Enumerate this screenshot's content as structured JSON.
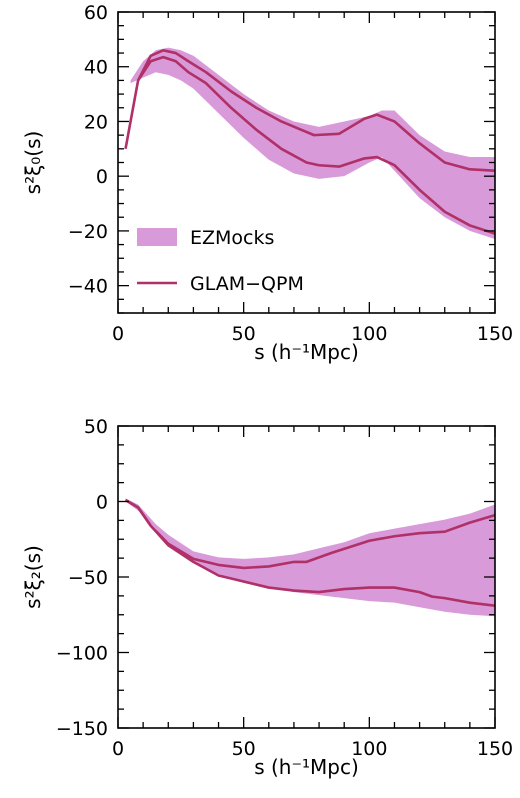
{
  "colors": {
    "band": "#d99ad9",
    "line": "#b03068",
    "axis": "#000000",
    "background": "#ffffff"
  },
  "chart_data": [
    {
      "type": "area",
      "id": "monopole",
      "xlabel": "s (h⁻¹Mpc)",
      "ylabel": "s²ξ₀(s)",
      "xlim": [
        0,
        150
      ],
      "ylim": [
        -50,
        60
      ],
      "xticks": [
        0,
        50,
        100,
        150
      ],
      "yticks": [
        -40,
        -20,
        0,
        20,
        40,
        60
      ],
      "legend": {
        "position": "lower-left",
        "entries": [
          "EZMocks",
          "GLAM−QPM"
        ]
      },
      "series": [
        {
          "name": "EZMocks",
          "kind": "band",
          "x": [
            5,
            10,
            15,
            20,
            25,
            30,
            40,
            50,
            60,
            70,
            80,
            90,
            100,
            105,
            110,
            120,
            130,
            140,
            150
          ],
          "lower": [
            34,
            36,
            38,
            37,
            35,
            32,
            23,
            14,
            6,
            1,
            -1,
            0,
            5,
            7,
            2,
            -8,
            -15,
            -20,
            -23
          ],
          "upper": [
            35,
            42,
            46,
            47,
            46,
            44,
            37,
            30,
            24,
            20,
            18,
            20,
            22,
            24,
            24,
            15,
            9,
            7,
            7
          ]
        },
        {
          "name": "GLAM−QPM",
          "kind": "line",
          "x": [
            3,
            8,
            13,
            18,
            23,
            28,
            35,
            45,
            55,
            65,
            78,
            88,
            98,
            103,
            110,
            120,
            130,
            140,
            150
          ],
          "y": [
            10,
            35,
            44,
            46,
            45,
            42,
            38,
            31,
            25,
            20,
            15,
            15.5,
            21,
            22.5,
            20,
            12,
            5,
            2.5,
            2
          ]
        },
        {
          "name": "GLAM−QPM",
          "kind": "line",
          "x": [
            8,
            13,
            18,
            23,
            28,
            35,
            45,
            55,
            65,
            75,
            80,
            88,
            98,
            103,
            110,
            120,
            130,
            140,
            150
          ],
          "y": [
            35,
            42,
            43.5,
            42,
            38,
            34,
            25,
            17,
            10,
            5,
            4,
            3.5,
            6.5,
            7,
            4,
            -5,
            -13,
            -18,
            -21
          ]
        }
      ]
    },
    {
      "type": "area",
      "id": "quadrupole",
      "xlabel": "s (h⁻¹Mpc)",
      "ylabel": "s²ξ₂(s)",
      "xlim": [
        0,
        150
      ],
      "ylim": [
        -150,
        50
      ],
      "xticks": [
        0,
        50,
        100,
        150
      ],
      "yticks": [
        -150,
        -100,
        -50,
        0,
        50
      ],
      "series": [
        {
          "name": "EZMocks",
          "kind": "band",
          "x": [
            3,
            8,
            15,
            20,
            30,
            40,
            50,
            60,
            70,
            80,
            90,
            100,
            110,
            120,
            130,
            140,
            150
          ],
          "lower": [
            0,
            -6,
            -18,
            -28,
            -40,
            -48,
            -54,
            -57,
            -60,
            -62,
            -64,
            -66,
            -67,
            -70,
            -73,
            -75,
            -76
          ],
          "upper": [
            2,
            -2,
            -15,
            -22,
            -33,
            -37,
            -38,
            -37,
            -35,
            -31,
            -27,
            -21,
            -18,
            -15,
            -12,
            -8,
            -2
          ]
        },
        {
          "name": "GLAM−QPM",
          "kind": "line",
          "x": [
            3,
            8,
            13,
            20,
            30,
            40,
            50,
            60,
            70,
            75,
            85,
            100,
            110,
            120,
            130,
            140,
            150
          ],
          "y": [
            1,
            -4,
            -16,
            -28,
            -38,
            -42,
            -44,
            -43,
            -40,
            -40,
            -34,
            -26,
            -23,
            -21,
            -20,
            -14,
            -9
          ]
        },
        {
          "name": "GLAM−QPM",
          "kind": "line",
          "x": [
            3,
            8,
            13,
            20,
            30,
            40,
            50,
            60,
            70,
            80,
            90,
            100,
            110,
            120,
            125,
            130,
            140,
            150
          ],
          "y": [
            1,
            -4,
            -16,
            -29,
            -40,
            -49,
            -53,
            -57,
            -59,
            -60,
            -58,
            -57,
            -57,
            -60,
            -63,
            -64,
            -67,
            -69
          ]
        }
      ]
    }
  ]
}
